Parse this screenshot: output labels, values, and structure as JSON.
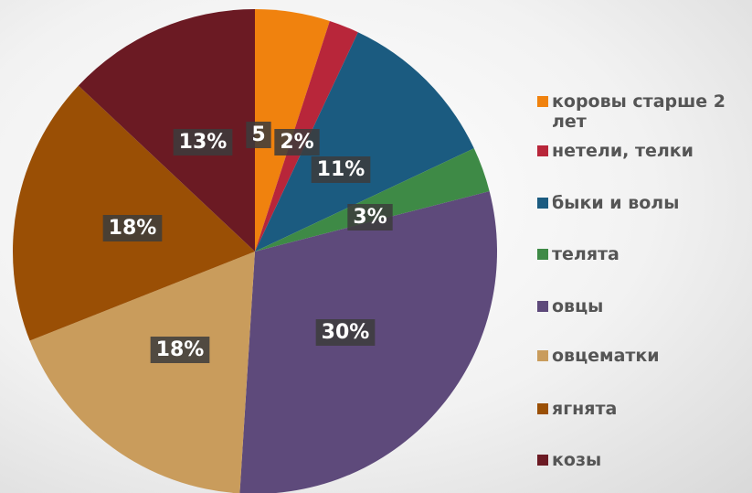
{
  "chart_data": {
    "type": "pie",
    "categories": [
      "коровы старше 2 лет",
      "нетели, телки",
      "быки и волы",
      "телята",
      "овцы",
      "овцематки",
      "ягнята",
      "козы"
    ],
    "values": [
      5,
      2,
      11,
      3,
      30,
      18,
      18,
      13
    ],
    "value_labels": [
      "5",
      "2%",
      "11%",
      "3%",
      "30%",
      "18%",
      "18%",
      "13%"
    ],
    "colors": [
      "#f0820e",
      "#b8263a",
      "#1b5b80",
      "#3e8a46",
      "#5e4a7b",
      "#c99c5c",
      "#9a4f05",
      "#6b1a23"
    ],
    "legend": "right"
  }
}
